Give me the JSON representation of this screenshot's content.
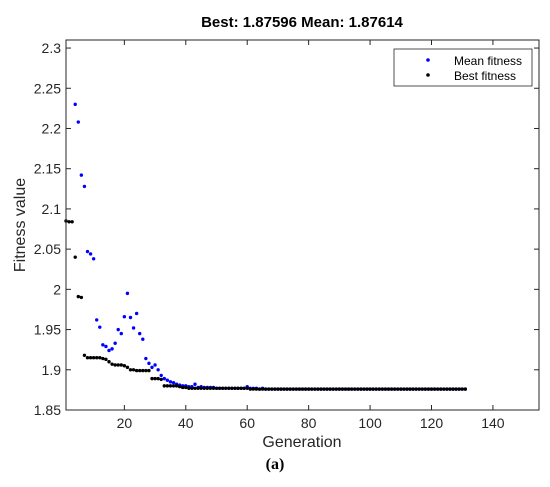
{
  "caption": "(a)",
  "chart_data": {
    "type": "scatter",
    "title": "Best: 1.87596 Mean: 1.87614",
    "xlabel": "Generation",
    "ylabel": "Fitness value",
    "xlim": [
      1,
      155
    ],
    "ylim": [
      1.85,
      2.31
    ],
    "xticks": [
      20,
      40,
      60,
      80,
      100,
      120,
      140
    ],
    "yticks": [
      1.85,
      1.9,
      1.95,
      2,
      2.05,
      2.1,
      2.15,
      2.2,
      2.25,
      2.3
    ],
    "xtick_labels": [
      "20",
      "40",
      "60",
      "80",
      "100",
      "120",
      "140"
    ],
    "ytick_labels": [
      "1.85",
      "1.9",
      "1.95",
      "2",
      "2.05",
      "2.1",
      "2.15",
      "2.2",
      "2.25",
      "2.3"
    ],
    "legend_position": "top-right",
    "grid": false,
    "series": [
      {
        "name": "Mean fitness",
        "color": "#0000ff",
        "x": [
          4,
          5,
          6,
          7,
          8,
          9,
          10,
          11,
          12,
          13,
          14,
          15,
          16,
          17,
          18,
          19,
          20,
          21,
          22,
          23,
          24,
          25,
          26,
          27,
          28,
          29,
          30,
          31,
          32,
          33,
          34,
          35,
          36,
          37,
          38,
          39,
          40,
          41,
          42,
          43,
          44,
          45,
          46,
          47,
          48,
          49,
          50,
          51,
          52,
          53,
          54,
          55,
          56,
          57,
          58,
          59,
          60,
          61,
          62,
          63,
          64,
          65,
          66,
          67,
          68,
          69,
          70,
          71,
          72,
          73,
          74,
          75,
          76,
          77,
          78,
          79,
          80,
          81,
          82,
          83,
          84,
          85,
          86,
          87,
          88,
          89,
          90,
          91,
          92,
          93,
          94,
          95,
          96,
          97,
          98,
          99,
          100,
          101,
          102,
          103,
          104,
          105,
          106,
          107,
          108,
          109,
          110,
          111,
          112,
          113,
          114,
          115,
          116,
          117,
          118,
          119,
          120,
          121,
          122,
          123,
          124,
          125,
          126,
          127,
          128,
          129,
          130,
          131
        ],
        "y": [
          2.23,
          2.208,
          2.142,
          2.128,
          2.047,
          2.044,
          2.038,
          1.962,
          1.953,
          1.931,
          1.929,
          1.924,
          1.926,
          1.933,
          1.95,
          1.945,
          1.966,
          1.995,
          1.965,
          1.952,
          1.97,
          1.945,
          1.938,
          1.914,
          1.908,
          1.903,
          1.906,
          1.9,
          1.893,
          1.889,
          1.887,
          1.885,
          1.884,
          1.882,
          1.881,
          1.88,
          1.88,
          1.879,
          1.879,
          1.882,
          1.878,
          1.879,
          1.878,
          1.878,
          1.878,
          1.878,
          1.877,
          1.877,
          1.877,
          1.877,
          1.877,
          1.877,
          1.877,
          1.877,
          1.877,
          1.877,
          1.879,
          1.877,
          1.877,
          1.877,
          1.876,
          1.877,
          1.876,
          1.876,
          1.876,
          1.876,
          1.876,
          1.876,
          1.876,
          1.876,
          1.876,
          1.876,
          1.876,
          1.876,
          1.876,
          1.876,
          1.876,
          1.876,
          1.876,
          1.876,
          1.876,
          1.876,
          1.876,
          1.876,
          1.876,
          1.876,
          1.876,
          1.876,
          1.876,
          1.876,
          1.876,
          1.876,
          1.876,
          1.876,
          1.876,
          1.876,
          1.876,
          1.876,
          1.876,
          1.876,
          1.876,
          1.876,
          1.876,
          1.876,
          1.876,
          1.876,
          1.876,
          1.876,
          1.876,
          1.876,
          1.876,
          1.876,
          1.876,
          1.876,
          1.876,
          1.876,
          1.876,
          1.876,
          1.876,
          1.876,
          1.876,
          1.876,
          1.876,
          1.876,
          1.876,
          1.876,
          1.876,
          1.876
        ]
      },
      {
        "name": "Best fitness",
        "color": "#000000",
        "x": [
          1,
          2,
          3,
          4,
          5,
          6,
          7,
          8,
          9,
          10,
          11,
          12,
          13,
          14,
          15,
          16,
          17,
          18,
          19,
          20,
          21,
          22,
          23,
          24,
          25,
          26,
          27,
          28,
          29,
          30,
          31,
          32,
          33,
          34,
          35,
          36,
          37,
          38,
          39,
          40,
          41,
          42,
          43,
          44,
          45,
          46,
          47,
          48,
          49,
          50,
          51,
          52,
          53,
          54,
          55,
          56,
          57,
          58,
          59,
          60,
          61,
          62,
          63,
          64,
          65,
          66,
          67,
          68,
          69,
          70,
          71,
          72,
          73,
          74,
          75,
          76,
          77,
          78,
          79,
          80,
          81,
          82,
          83,
          84,
          85,
          86,
          87,
          88,
          89,
          90,
          91,
          92,
          93,
          94,
          95,
          96,
          97,
          98,
          99,
          100,
          101,
          102,
          103,
          104,
          105,
          106,
          107,
          108,
          109,
          110,
          111,
          112,
          113,
          114,
          115,
          116,
          117,
          118,
          119,
          120,
          121,
          122,
          123,
          124,
          125,
          126,
          127,
          128,
          129,
          130,
          131
        ],
        "y": [
          2.085,
          2.084,
          2.084,
          2.04,
          1.991,
          1.99,
          1.918,
          1.915,
          1.915,
          1.915,
          1.915,
          1.915,
          1.914,
          1.913,
          1.91,
          1.907,
          1.906,
          1.906,
          1.906,
          1.905,
          1.903,
          1.9,
          1.9,
          1.899,
          1.899,
          1.899,
          1.899,
          1.899,
          1.889,
          1.889,
          1.889,
          1.888,
          1.88,
          1.88,
          1.88,
          1.88,
          1.88,
          1.879,
          1.878,
          1.878,
          1.877,
          1.877,
          1.877,
          1.877,
          1.877,
          1.877,
          1.877,
          1.877,
          1.877,
          1.877,
          1.877,
          1.877,
          1.877,
          1.877,
          1.877,
          1.877,
          1.877,
          1.877,
          1.877,
          1.877,
          1.876,
          1.876,
          1.876,
          1.876,
          1.876,
          1.876,
          1.876,
          1.876,
          1.876,
          1.876,
          1.876,
          1.876,
          1.876,
          1.876,
          1.876,
          1.876,
          1.876,
          1.876,
          1.876,
          1.876,
          1.876,
          1.876,
          1.876,
          1.876,
          1.876,
          1.876,
          1.876,
          1.876,
          1.876,
          1.876,
          1.876,
          1.876,
          1.876,
          1.876,
          1.876,
          1.876,
          1.876,
          1.876,
          1.876,
          1.876,
          1.876,
          1.876,
          1.876,
          1.876,
          1.876,
          1.876,
          1.876,
          1.876,
          1.876,
          1.876,
          1.876,
          1.876,
          1.876,
          1.876,
          1.876,
          1.876,
          1.876,
          1.876,
          1.876,
          1.876,
          1.876,
          1.876,
          1.876,
          1.876,
          1.876,
          1.876,
          1.876,
          1.876,
          1.876,
          1.876,
          1.876
        ]
      }
    ]
  }
}
